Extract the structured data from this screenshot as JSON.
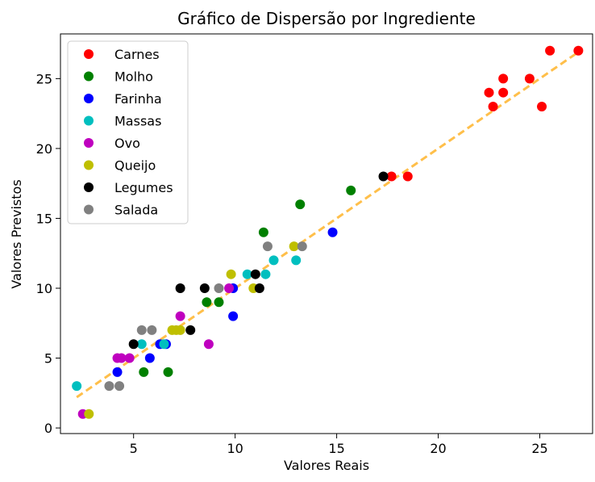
{
  "chart_data": {
    "type": "scatter",
    "title": "Gráfico de Dispersão por Ingrediente",
    "xlabel": "Valores Reais",
    "ylabel": "Valores Previstos",
    "xlim": [
      1.4,
      27.6
    ],
    "ylim": [
      -0.4,
      28.2
    ],
    "x_ticks": [
      5,
      10,
      15,
      20,
      25
    ],
    "y_ticks": [
      0,
      5,
      10,
      15,
      20,
      25
    ],
    "grid": false,
    "legend_position": "top-left",
    "reference_line": {
      "style": "dashed",
      "color": "#ffbf4a",
      "x": [
        2.2,
        26.9
      ],
      "y": [
        2.2,
        26.9
      ]
    },
    "series": [
      {
        "name": "Carnes",
        "color": "#ff0000",
        "points": [
          [
            25.5,
            27
          ],
          [
            26.9,
            27
          ],
          [
            23.2,
            25
          ],
          [
            24.5,
            25
          ],
          [
            22.5,
            24
          ],
          [
            23.2,
            24
          ],
          [
            22.7,
            23
          ],
          [
            25.1,
            23
          ],
          [
            17.7,
            18
          ],
          [
            18.5,
            18
          ]
        ]
      },
      {
        "name": "Molho",
        "color": "#008000",
        "points": [
          [
            15.7,
            17
          ],
          [
            13.2,
            16
          ],
          [
            11.4,
            14
          ],
          [
            8.6,
            9
          ],
          [
            9.2,
            9
          ],
          [
            5.5,
            4
          ],
          [
            6.7,
            4
          ]
        ]
      },
      {
        "name": "Farinha",
        "color": "#0000ff",
        "points": [
          [
            14.8,
            14
          ],
          [
            9.9,
            10
          ],
          [
            9.9,
            8
          ],
          [
            6.3,
            6
          ],
          [
            6.6,
            6
          ],
          [
            5.8,
            5
          ],
          [
            4.2,
            4
          ]
        ]
      },
      {
        "name": "Massas",
        "color": "#00bfbf",
        "points": [
          [
            2.2,
            3
          ],
          [
            5.4,
            6
          ],
          [
            6.5,
            6
          ],
          [
            10.6,
            11
          ],
          [
            11.5,
            11
          ],
          [
            11.9,
            12
          ],
          [
            13.0,
            12
          ]
        ]
      },
      {
        "name": "Ovo",
        "color": "#bf00bf",
        "points": [
          [
            2.5,
            1
          ],
          [
            4.2,
            5
          ],
          [
            4.4,
            5
          ],
          [
            4.8,
            5
          ],
          [
            7.3,
            8
          ],
          [
            9.7,
            10
          ],
          [
            8.7,
            6
          ]
        ]
      },
      {
        "name": "Queijo",
        "color": "#bfbf00",
        "points": [
          [
            2.8,
            1
          ],
          [
            6.9,
            7
          ],
          [
            7.1,
            7
          ],
          [
            7.3,
            7
          ],
          [
            9.8,
            11
          ],
          [
            10.9,
            10
          ],
          [
            12.9,
            13
          ]
        ]
      },
      {
        "name": "Legumes",
        "color": "#000000",
        "points": [
          [
            5.0,
            6
          ],
          [
            7.3,
            10
          ],
          [
            7.8,
            7
          ],
          [
            8.5,
            10
          ],
          [
            11.0,
            11
          ],
          [
            11.2,
            10
          ],
          [
            17.3,
            18
          ]
        ]
      },
      {
        "name": "Salada",
        "color": "#808080",
        "points": [
          [
            3.8,
            3
          ],
          [
            4.3,
            3
          ],
          [
            5.4,
            7
          ],
          [
            5.9,
            7
          ],
          [
            9.2,
            10
          ],
          [
            11.6,
            13
          ],
          [
            13.3,
            13
          ]
        ]
      }
    ]
  }
}
